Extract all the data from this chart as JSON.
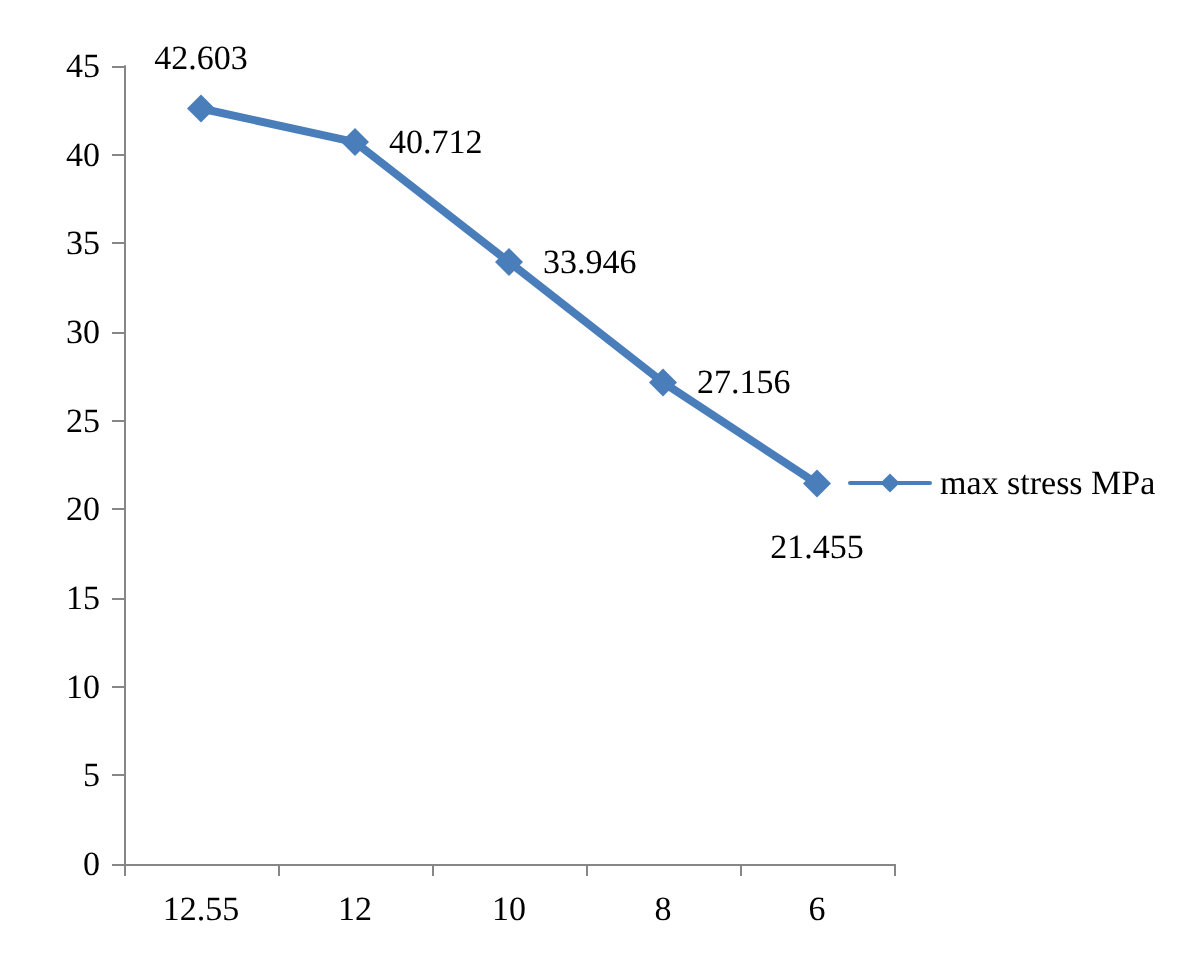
{
  "chart_data": {
    "type": "line",
    "categories": [
      "12.55",
      "12",
      "10",
      "8",
      "6"
    ],
    "series": [
      {
        "name": "max stress MPa",
        "color": "#4a7ebb",
        "values": [
          42.603,
          40.712,
          33.946,
          27.156,
          21.455
        ]
      }
    ],
    "ylim": [
      0,
      45
    ],
    "yticks": [
      0,
      5,
      10,
      15,
      20,
      25,
      30,
      35,
      40,
      45
    ],
    "grid": false,
    "legend": "right",
    "marker": "diamond",
    "line_style": "solid",
    "data_labels": true
  }
}
